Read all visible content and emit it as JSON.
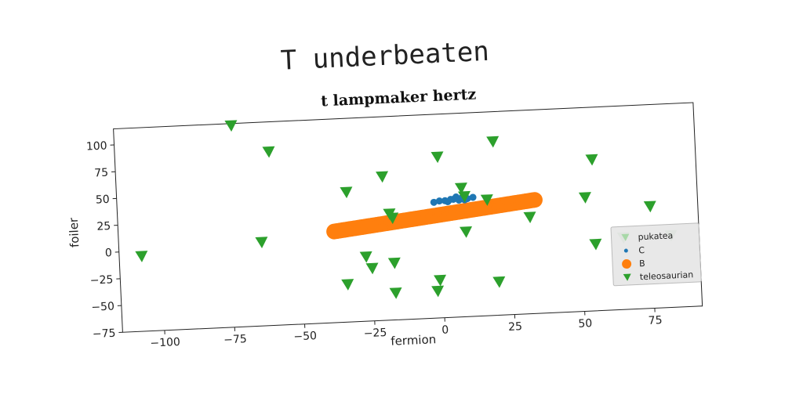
{
  "chart_data": {
    "type": "scatter",
    "suptitle": "T underbeaten",
    "title": "t lampmaker hertz",
    "xlabel": "fermion",
    "ylabel": "foiler",
    "xlim": [
      -115,
      92
    ],
    "ylim": [
      -75,
      115
    ],
    "xticks": [
      -100,
      -75,
      -50,
      -25,
      0,
      25,
      50,
      75
    ],
    "yticks": [
      -75,
      -50,
      -25,
      0,
      25,
      50,
      75,
      100
    ],
    "grid": false,
    "legend_position": "lower right",
    "series": [
      {
        "name": "pukatea",
        "marker": "triangle-down",
        "color": "#a8d8a8",
        "points": [
          [
            65,
            -8
          ],
          [
            82,
            -8
          ]
        ]
      },
      {
        "name": "C",
        "marker": "circle-small",
        "color": "#1f77b4",
        "points": [
          [
            -2,
            33
          ],
          [
            0,
            34
          ],
          [
            2,
            34
          ],
          [
            3,
            33
          ],
          [
            5,
            35
          ],
          [
            7,
            34
          ],
          [
            8,
            36
          ],
          [
            10,
            35
          ],
          [
            12,
            36
          ],
          [
            6,
            37
          ],
          [
            4,
            35
          ],
          [
            9,
            34
          ]
        ]
      },
      {
        "name": "B",
        "marker": "circle-large",
        "color": "#ff7f0e",
        "line": {
          "x_start": -38,
          "y_start": 10,
          "x_end": 34,
          "y_end": 31,
          "count": 90
        }
      },
      {
        "name": "teleosaurian",
        "marker": "triangle-down",
        "color": "#2ca02c",
        "points": [
          [
            -107,
            -5
          ],
          [
            -73,
            113
          ],
          [
            -60,
            87
          ],
          [
            -64,
            3
          ],
          [
            -33,
            46
          ],
          [
            -27,
            -15
          ],
          [
            -25,
            -26
          ],
          [
            -20,
            59
          ],
          [
            -18,
            24
          ],
          [
            -17,
            20
          ],
          [
            -17,
            -22
          ],
          [
            -17,
            -50
          ],
          [
            0,
            75
          ],
          [
            -1,
            -40
          ],
          [
            -2,
            -50
          ],
          [
            8,
            45
          ],
          [
            9,
            37
          ],
          [
            9,
            4
          ],
          [
            17,
            33
          ],
          [
            20,
            87
          ],
          [
            20,
            -44
          ],
          [
            32,
            15
          ],
          [
            52,
            31
          ],
          [
            55,
            66
          ],
          [
            55,
            -13
          ],
          [
            75,
            20
          ],
          [
            -34,
            -40
          ]
        ]
      }
    ]
  }
}
